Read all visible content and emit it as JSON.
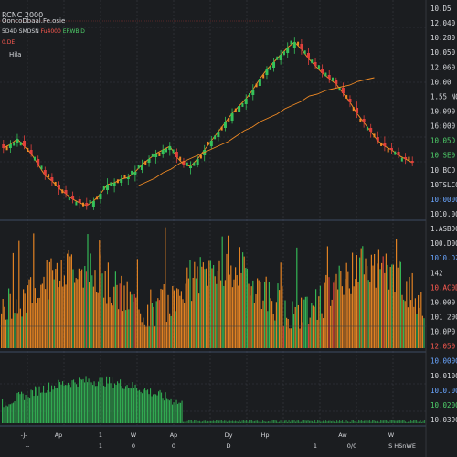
{
  "colors": {
    "background": "#1b1d20",
    "grid": "#3a3d44",
    "separator": "#4a5a78",
    "up": "#35c25a",
    "down": "#e0403c",
    "orange": "#f08a24",
    "text": "#d6d8dc",
    "label_blue": "#6aa6ff",
    "label_red": "#ff5a50",
    "label_green": "#4fd06a"
  },
  "header": {
    "symbol": "RCNC 2000",
    "subtitle": "OoncoDbaal.Fe.osie",
    "stats_a": "5D4D SMDSN",
    "stats_b_red": "Fu4000",
    "stats_b_green": "ERWBID",
    "indicator": "0.DE",
    "legend_label": "Hila"
  },
  "chart_data": [
    {
      "type": "candlestick",
      "panel": "price",
      "title": "RCNC 2000",
      "x": [
        1,
        3,
        5,
        7,
        9,
        11,
        13,
        15,
        17,
        19,
        21,
        23,
        25,
        27,
        29,
        31,
        33,
        35,
        37,
        39,
        41,
        43,
        45,
        47,
        49,
        51,
        53,
        55,
        57,
        59,
        61,
        63,
        65,
        67,
        69,
        71,
        73,
        75,
        77,
        79,
        81,
        83,
        85,
        87,
        89,
        91,
        93,
        95,
        97,
        99,
        101,
        103,
        105,
        107,
        109,
        111,
        113,
        115,
        117,
        119
      ],
      "close": [
        168,
        172,
        178,
        170,
        162,
        150,
        138,
        132,
        124,
        118,
        112,
        108,
        105,
        110,
        118,
        128,
        130,
        134,
        136,
        142,
        150,
        156,
        162,
        166,
        170,
        158,
        150,
        148,
        156,
        166,
        176,
        186,
        196,
        206,
        214,
        222,
        232,
        244,
        254,
        262,
        270,
        278,
        284,
        276,
        266,
        258,
        250,
        244,
        238,
        228,
        218,
        206,
        196,
        186,
        176,
        170,
        166,
        160,
        156,
        152
      ],
      "open": [
        172,
        168,
        174,
        176,
        166,
        156,
        144,
        136,
        128,
        122,
        116,
        112,
        108,
        104,
        112,
        122,
        126,
        130,
        134,
        138,
        144,
        152,
        158,
        162,
        166,
        164,
        154,
        146,
        150,
        160,
        170,
        180,
        190,
        198,
        208,
        216,
        226,
        236,
        248,
        256,
        264,
        272,
        278,
        282,
        272,
        262,
        254,
        248,
        242,
        234,
        222,
        212,
        200,
        190,
        180,
        174,
        168,
        164,
        158,
        154
      ],
      "series_line": [
        152,
        156,
        160,
        166,
        170,
        176,
        180,
        184,
        188,
        192,
        196,
        200,
        206,
        212,
        216,
        222,
        226,
        230,
        236,
        240,
        244,
        250,
        252,
        256,
        258,
        260,
        262,
        266,
        268,
        270
      ],
      "ylim": [
        100,
        300
      ]
    },
    {
      "type": "bar",
      "panel": "volume",
      "ylim": [
        0,
        100
      ]
    },
    {
      "type": "bar",
      "panel": "oscillator",
      "ylim": [
        0,
        100
      ]
    }
  ],
  "price_axis": {
    "labels": [
      {
        "text": "10.D5",
        "color": "text"
      },
      {
        "text": "12.040",
        "color": "text"
      },
      {
        "text": "10:280",
        "color": "text"
      },
      {
        "text": "10.050",
        "color": "text"
      },
      {
        "text": "12.060",
        "color": "text"
      },
      {
        "text": "10.00",
        "color": "text"
      },
      {
        "text": "1.55 N0",
        "color": "text"
      },
      {
        "text": "10.090",
        "color": "text"
      },
      {
        "text": "16:000",
        "color": "text"
      },
      {
        "text": "10.05D",
        "color": "label_green"
      },
      {
        "text": "10 SE0",
        "color": "label_green"
      },
      {
        "text": "10 BCD",
        "color": "text"
      },
      {
        "text": "10TSLC0",
        "color": "text"
      },
      {
        "text": "10:0000",
        "color": "label_blue"
      },
      {
        "text": "1010.00",
        "color": "text"
      },
      {
        "text": "1.ASBD0",
        "color": "text"
      },
      {
        "text": "100.D00",
        "color": "text"
      },
      {
        "text": "1010.DZ0",
        "color": "label_blue"
      },
      {
        "text": "142",
        "color": "text"
      },
      {
        "text": "10.AC0D",
        "color": "label_red"
      },
      {
        "text": "10.000",
        "color": "text"
      },
      {
        "text": "101 200",
        "color": "text"
      },
      {
        "text": "10.0P0",
        "color": "text"
      },
      {
        "text": "12.050",
        "color": "label_red"
      },
      {
        "text": "10.0000",
        "color": "label_blue"
      },
      {
        "text": "10.0100",
        "color": "text"
      },
      {
        "text": "1010.00",
        "color": "label_blue"
      },
      {
        "text": "10.0200",
        "color": "label_green"
      },
      {
        "text": "10.0390",
        "color": "text"
      }
    ]
  },
  "time_axis": {
    "top_labels": [
      "-J-",
      "Ap",
      "1",
      "W",
      "Ap",
      "Dy",
      "Hp",
      "Aw",
      "W"
    ],
    "bottom_labels": [
      "--",
      "1",
      "0",
      "0",
      "D",
      "1",
      "0/0",
      "S HSnWE"
    ]
  }
}
